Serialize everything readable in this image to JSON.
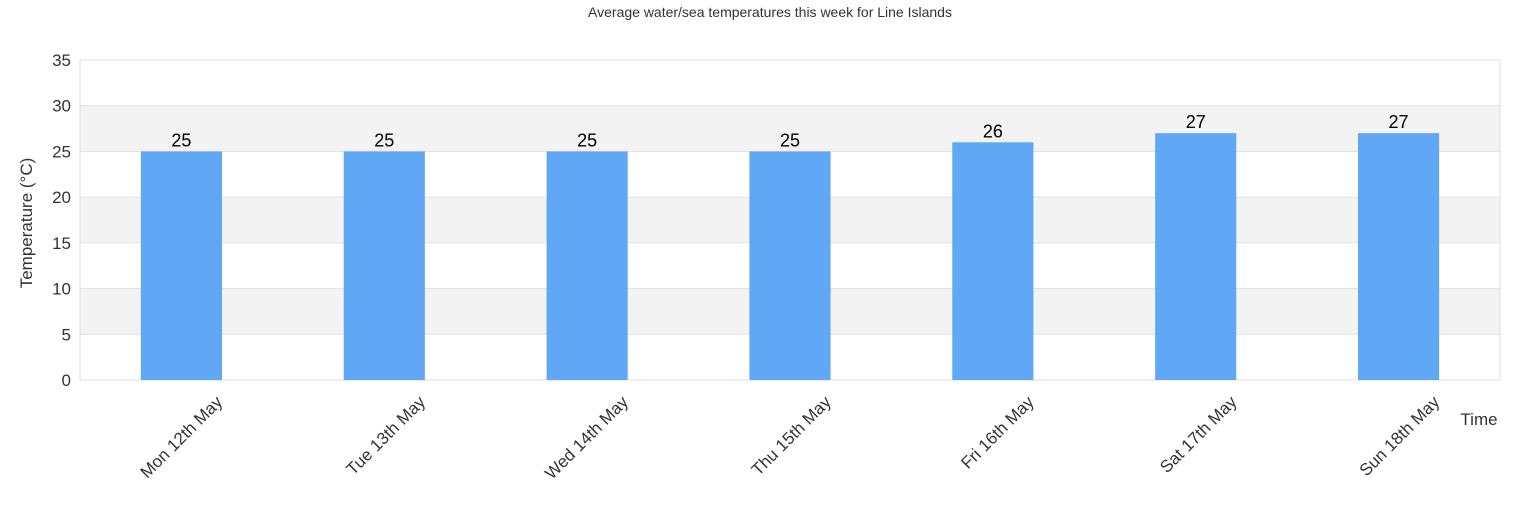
{
  "chart_data": {
    "type": "bar",
    "title": "Average water/sea temperatures this week for Line Islands",
    "xlabel": "Time",
    "ylabel": "Temperature (°C)",
    "categories": [
      "Mon 12th May",
      "Tue 13th May",
      "Wed 14th May",
      "Thu 15th May",
      "Fri 16th May",
      "Sat 17th May",
      "Sun 18th May"
    ],
    "values": [
      25,
      25,
      25,
      25,
      26,
      27,
      27
    ],
    "ylim": [
      0,
      35
    ],
    "yticks": [
      0,
      5,
      10,
      15,
      20,
      25,
      30,
      35
    ],
    "grid": true,
    "bar_color": "#60a8f5",
    "band_color": "#f3f3f3"
  }
}
